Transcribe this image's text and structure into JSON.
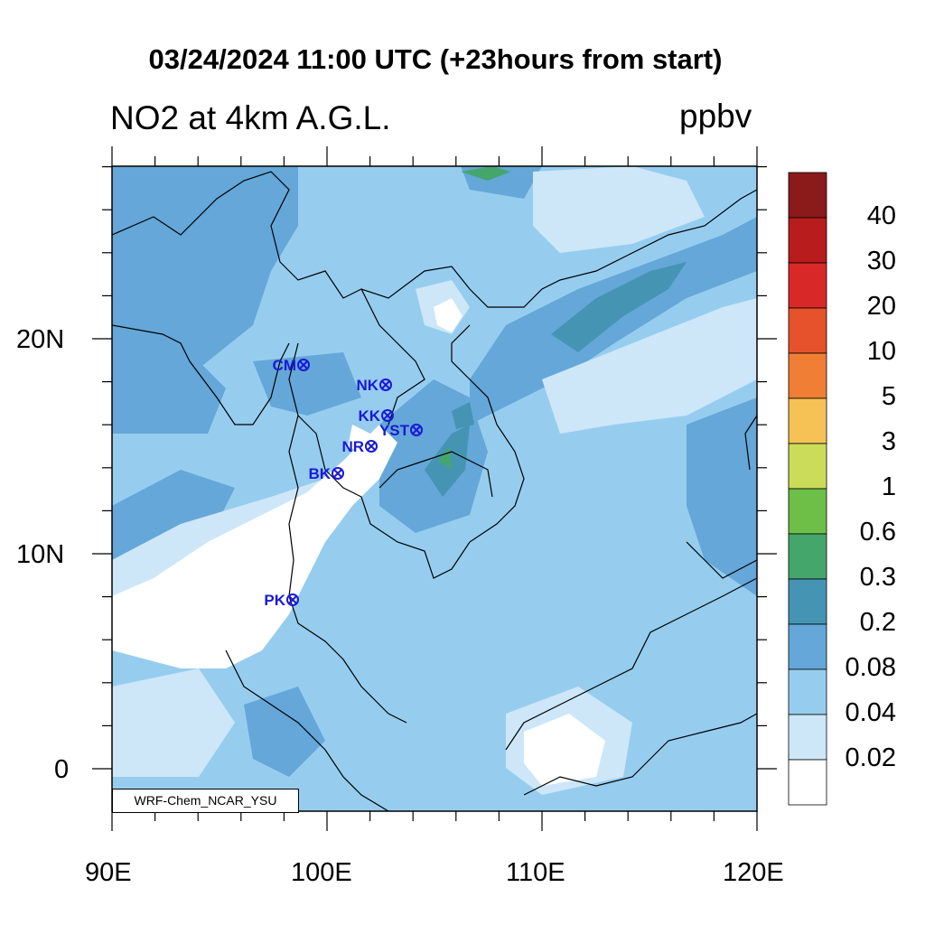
{
  "title": "03/24/2024 11:00 UTC (+23hours from start)",
  "subtitle_left": "NO2 at 4km A.G.L.",
  "subtitle_right": "ppbv",
  "watermark": "WRF-Chem_NCAR_YSU",
  "lon_labels": [
    "90E",
    "100E",
    "110E",
    "120E"
  ],
  "lat_labels": [
    "20N",
    "10N",
    "0"
  ],
  "stations": [
    {
      "name": "CM"
    },
    {
      "name": "NK"
    },
    {
      "name": "KK"
    },
    {
      "name": "YST"
    },
    {
      "name": "NR"
    },
    {
      "name": "BK"
    },
    {
      "name": "PK"
    }
  ],
  "station_color": "#1a1ad6",
  "colorbar": {
    "labels": [
      "40",
      "30",
      "20",
      "10",
      "5",
      "3",
      "1",
      "0.6",
      "0.3",
      "0.2",
      "0.08",
      "0.04",
      "0.02"
    ],
    "colors": [
      "#8b1a1a",
      "#b81c1c",
      "#d92828",
      "#e5522b",
      "#f07e35",
      "#f6c255",
      "#cbdc5a",
      "#6dbf48",
      "#45a66c",
      "#4594b3",
      "#64a7d8",
      "#96cdef",
      "#cde7f8",
      "#ffffff"
    ]
  }
}
